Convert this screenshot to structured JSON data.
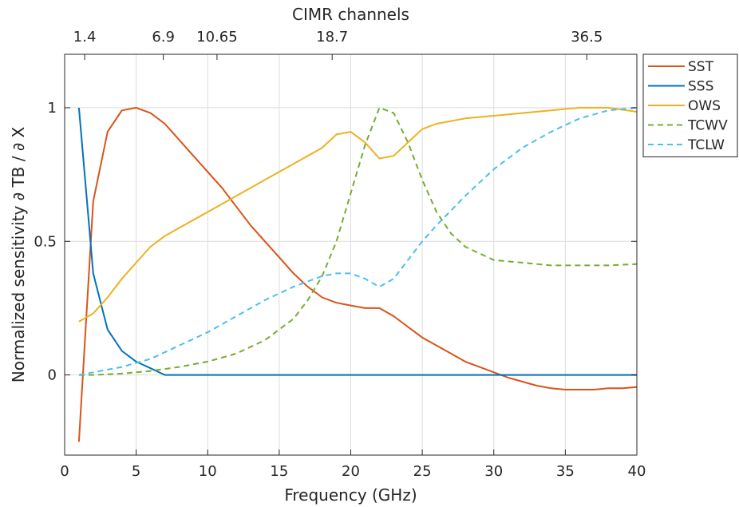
{
  "chart_data": {
    "type": "line",
    "title": "CIMR channels",
    "xlabel": "Frequency (GHz)",
    "ylabel": "Normalized sensitivity ∂ TB / ∂ X",
    "xlim": [
      0,
      40
    ],
    "ylim": [
      -0.3,
      1.2
    ],
    "xticks": [
      0,
      5,
      10,
      15,
      20,
      25,
      30,
      35,
      40
    ],
    "yticks": [
      0,
      0.5,
      1
    ],
    "top_axis": {
      "ticks": [
        1.4,
        6.9,
        10.65,
        18.7,
        36.5
      ],
      "labels": [
        "1.4",
        "6.9",
        "10.65",
        "18.7",
        "36.5"
      ]
    },
    "grid": true,
    "legend_position": "outside-right-top",
    "series": [
      {
        "name": "SST",
        "color": "#D95319",
        "dash": "solid",
        "x": [
          1,
          2,
          3,
          4,
          5,
          6,
          7,
          8,
          9,
          10,
          11,
          12,
          13,
          14,
          15,
          16,
          17,
          18,
          19,
          20,
          21,
          22,
          23,
          24,
          25,
          26,
          27,
          28,
          29,
          30,
          31,
          32,
          33,
          34,
          35,
          36,
          37,
          38,
          39,
          40
        ],
        "y": [
          -0.25,
          0.65,
          0.91,
          0.99,
          1.0,
          0.98,
          0.94,
          0.88,
          0.82,
          0.76,
          0.7,
          0.63,
          0.56,
          0.5,
          0.44,
          0.38,
          0.33,
          0.29,
          0.27,
          0.26,
          0.25,
          0.25,
          0.22,
          0.18,
          0.14,
          0.11,
          0.08,
          0.05,
          0.03,
          0.01,
          -0.01,
          -0.025,
          -0.04,
          -0.05,
          -0.055,
          -0.055,
          -0.055,
          -0.05,
          -0.05,
          -0.045
        ]
      },
      {
        "name": "SSS",
        "color": "#0072BD",
        "dash": "solid",
        "x": [
          1,
          2,
          3,
          4,
          5,
          6,
          7,
          40
        ],
        "y": [
          1.0,
          0.38,
          0.17,
          0.09,
          0.05,
          0.025,
          0.0,
          0.0
        ]
      },
      {
        "name": "OWS",
        "color": "#EDB120",
        "dash": "solid",
        "x": [
          1,
          2,
          3,
          4,
          5,
          6,
          7,
          8,
          10,
          12,
          14,
          16,
          18,
          19,
          20,
          21,
          22,
          23,
          24,
          25,
          26,
          28,
          30,
          32,
          34,
          36,
          38,
          40
        ],
        "y": [
          0.2,
          0.23,
          0.29,
          0.36,
          0.42,
          0.48,
          0.52,
          0.55,
          0.61,
          0.67,
          0.73,
          0.79,
          0.85,
          0.9,
          0.91,
          0.87,
          0.81,
          0.82,
          0.87,
          0.92,
          0.94,
          0.96,
          0.97,
          0.98,
          0.99,
          1.0,
          1.0,
          0.985
        ]
      },
      {
        "name": "TCWV",
        "color": "#77AC30",
        "dash": "dashed",
        "x": [
          1,
          2,
          4,
          6,
          8,
          10,
          12,
          14,
          16,
          17,
          18,
          19,
          20,
          21,
          22,
          23,
          24,
          25,
          26,
          27,
          28,
          30,
          32,
          34,
          36,
          38,
          40
        ],
        "y": [
          0.0,
          0.0,
          0.005,
          0.015,
          0.03,
          0.05,
          0.08,
          0.13,
          0.21,
          0.28,
          0.37,
          0.5,
          0.68,
          0.86,
          1.0,
          0.98,
          0.87,
          0.73,
          0.61,
          0.53,
          0.48,
          0.43,
          0.42,
          0.41,
          0.41,
          0.41,
          0.415
        ]
      },
      {
        "name": "TCLW",
        "color": "#4DBEEE",
        "dash": "dashed",
        "x": [
          1,
          2,
          4,
          6,
          8,
          10,
          12,
          14,
          16,
          18,
          19,
          20,
          21,
          22,
          23,
          24,
          25,
          26,
          28,
          30,
          32,
          34,
          36,
          38,
          40
        ],
        "y": [
          0.0,
          0.01,
          0.03,
          0.06,
          0.11,
          0.16,
          0.22,
          0.28,
          0.33,
          0.37,
          0.38,
          0.38,
          0.36,
          0.33,
          0.36,
          0.43,
          0.5,
          0.56,
          0.67,
          0.77,
          0.85,
          0.91,
          0.96,
          0.99,
          1.0
        ]
      }
    ]
  }
}
